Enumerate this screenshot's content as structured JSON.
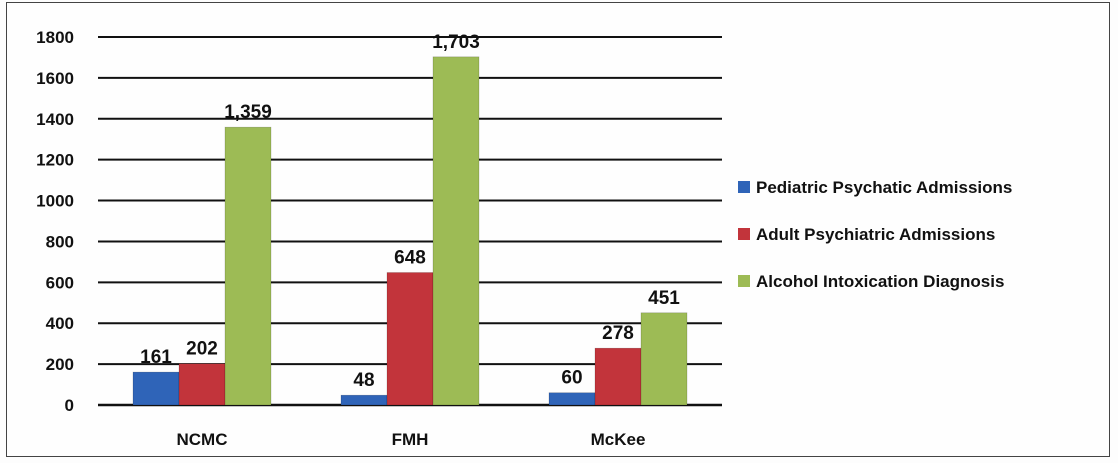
{
  "chart_data": {
    "type": "bar",
    "categories": [
      "NCMC",
      "FMH",
      "McKee"
    ],
    "series": [
      {
        "name": "Pediatric Psychatic Admissions",
        "values": [
          161,
          48,
          60
        ],
        "labels": [
          "161",
          "48",
          "60"
        ],
        "color": "#2f64b8"
      },
      {
        "name": "Adult Psychiatric Admissions",
        "values": [
          202,
          648,
          278
        ],
        "labels": [
          "202",
          "648",
          "278"
        ],
        "color": "#c2343b"
      },
      {
        "name": "Alcohol Intoxication Diagnosis",
        "values": [
          1359,
          1703,
          451
        ],
        "labels": [
          "1,359",
          "1,703",
          "451"
        ],
        "color": "#9dbb55"
      }
    ],
    "yticks": [
      "0",
      "200",
      "400",
      "600",
      "800",
      "1000",
      "1200",
      "1400",
      "1600",
      "1800"
    ],
    "ylim": [
      0,
      1800
    ],
    "grid": true,
    "legend_position": "right",
    "title": "",
    "xlabel": "",
    "ylabel": ""
  }
}
